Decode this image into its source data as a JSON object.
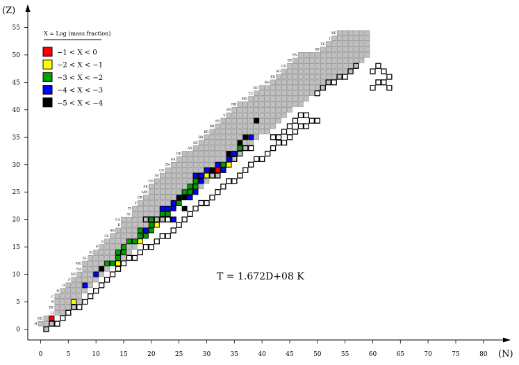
{
  "chart_data": {
    "type": "heatmap",
    "title": "",
    "xlabel": "(N)",
    "ylabel": "(Z)",
    "xlim": [
      0,
      80
    ],
    "ylim": [
      0,
      55
    ],
    "xticks": [
      0,
      5,
      10,
      15,
      20,
      25,
      30,
      35,
      40,
      45,
      50,
      55,
      60,
      65,
      70,
      75,
      80
    ],
    "yticks": [
      0,
      5,
      10,
      15,
      20,
      25,
      30,
      35,
      40,
      45,
      50,
      55
    ],
    "annotation": "T = 1.672D+08 K",
    "legend": {
      "title": "X = Log (mass fraction)",
      "placement": "top-left",
      "entries": [
        {
          "label": "−1 < X < 0",
          "color": "#ff0000"
        },
        {
          "label": "−2 < X < −1",
          "color": "#ffff00"
        },
        {
          "label": "−3 < X < −2",
          "color": "#00a000"
        },
        {
          "label": "−4 < X < −3",
          "color": "#0000ff"
        },
        {
          "label": "−5 < X < −4",
          "color": "#000000"
        }
      ]
    },
    "colors": {
      "network": "#c0c0c0",
      "m1": "#ff0000",
      "m2": "#ffff00",
      "m3": "#00a000",
      "m4": "#0000ff",
      "m5": "#000000"
    },
    "element_labels": [
      {
        "z": 1,
        "symbol": "H"
      },
      {
        "z": 2,
        "symbol": "HE"
      },
      {
        "z": 3,
        "symbol": "LI"
      },
      {
        "z": 4,
        "symbol": "BE"
      },
      {
        "z": 5,
        "symbol": "B"
      },
      {
        "z": 6,
        "symbol": "C"
      },
      {
        "z": 7,
        "symbol": "N"
      },
      {
        "z": 8,
        "symbol": "O"
      },
      {
        "z": 9,
        "symbol": "F"
      },
      {
        "z": 10,
        "symbol": "NE"
      },
      {
        "z": 11,
        "symbol": "NA"
      },
      {
        "z": 12,
        "symbol": "MG"
      },
      {
        "z": 13,
        "symbol": "AL"
      },
      {
        "z": 14,
        "symbol": "SI"
      },
      {
        "z": 15,
        "symbol": "P"
      },
      {
        "z": 16,
        "symbol": "S"
      },
      {
        "z": 17,
        "symbol": "CL"
      },
      {
        "z": 18,
        "symbol": "AR"
      },
      {
        "z": 19,
        "symbol": "K"
      },
      {
        "z": 20,
        "symbol": "CA"
      },
      {
        "z": 21,
        "symbol": "SC"
      },
      {
        "z": 22,
        "symbol": "TI"
      },
      {
        "z": 23,
        "symbol": "V"
      },
      {
        "z": 24,
        "symbol": "CR"
      },
      {
        "z": 25,
        "symbol": "MN"
      },
      {
        "z": 26,
        "symbol": "FE"
      },
      {
        "z": 27,
        "symbol": "CO"
      },
      {
        "z": 28,
        "symbol": "NI"
      },
      {
        "z": 29,
        "symbol": "CU"
      },
      {
        "z": 30,
        "symbol": "ZN"
      },
      {
        "z": 31,
        "symbol": "GA"
      },
      {
        "z": 32,
        "symbol": "GE"
      },
      {
        "z": 33,
        "symbol": "AS"
      },
      {
        "z": 34,
        "symbol": "SE"
      },
      {
        "z": 35,
        "symbol": "BR"
      },
      {
        "z": 36,
        "symbol": "KR"
      },
      {
        "z": 37,
        "symbol": "RB"
      },
      {
        "z": 38,
        "symbol": "SR"
      },
      {
        "z": 39,
        "symbol": "Y"
      },
      {
        "z": 40,
        "symbol": "ZR"
      },
      {
        "z": 41,
        "symbol": "NB"
      },
      {
        "z": 42,
        "symbol": "MO"
      },
      {
        "z": 43,
        "symbol": "TC"
      },
      {
        "z": 44,
        "symbol": "RU"
      },
      {
        "z": 45,
        "symbol": "RH"
      },
      {
        "z": 46,
        "symbol": "PD"
      },
      {
        "z": 47,
        "symbol": "AG"
      },
      {
        "z": 48,
        "symbol": "CD"
      },
      {
        "z": 49,
        "symbol": "IN"
      },
      {
        "z": 50,
        "symbol": "SN"
      },
      {
        "z": 51,
        "symbol": "SB"
      },
      {
        "z": 52,
        "symbol": "TE"
      },
      {
        "z": 53,
        "symbol": "I"
      },
      {
        "z": 54,
        "symbol": "XE"
      }
    ],
    "network_rows": [
      {
        "z": 0,
        "n": [
          1,
          1
        ]
      },
      {
        "z": 1,
        "n": [
          0,
          2
        ]
      },
      {
        "z": 2,
        "n": [
          1,
          2
        ]
      },
      {
        "z": 3,
        "n": [
          3,
          4
        ]
      },
      {
        "z": 4,
        "n": [
          3,
          6
        ]
      },
      {
        "z": 5,
        "n": [
          3,
          7
        ]
      },
      {
        "z": 6,
        "n": [
          3,
          7
        ]
      },
      {
        "z": 7,
        "n": [
          4,
          8
        ]
      },
      {
        "z": 8,
        "n": [
          5,
          9
        ]
      },
      {
        "z": 9,
        "n": [
          6,
          10
        ]
      },
      {
        "z": 10,
        "n": [
          7,
          11
        ]
      },
      {
        "z": 11,
        "n": [
          8,
          12
        ]
      },
      {
        "z": 12,
        "n": [
          8,
          14
        ]
      },
      {
        "z": 13,
        "n": [
          9,
          15
        ]
      },
      {
        "z": 14,
        "n": [
          10,
          16
        ]
      },
      {
        "z": 15,
        "n": [
          11,
          17
        ]
      },
      {
        "z": 16,
        "n": [
          12,
          18
        ]
      },
      {
        "z": 17,
        "n": [
          13,
          19
        ]
      },
      {
        "z": 18,
        "n": [
          14,
          20
        ]
      },
      {
        "z": 19,
        "n": [
          15,
          21
        ]
      },
      {
        "z": 20,
        "n": [
          15,
          22
        ]
      },
      {
        "z": 21,
        "n": [
          17,
          23
        ]
      },
      {
        "z": 22,
        "n": [
          17,
          24
        ]
      },
      {
        "z": 23,
        "n": [
          18,
          25
        ]
      },
      {
        "z": 24,
        "n": [
          19,
          27
        ]
      },
      {
        "z": 25,
        "n": [
          20,
          28
        ]
      },
      {
        "z": 26,
        "n": [
          20,
          29
        ]
      },
      {
        "z": 27,
        "n": [
          21,
          30
        ]
      },
      {
        "z": 28,
        "n": [
          22,
          32
        ]
      },
      {
        "z": 29,
        "n": [
          23,
          33
        ]
      },
      {
        "z": 30,
        "n": [
          24,
          34
        ]
      },
      {
        "z": 31,
        "n": [
          25,
          35
        ]
      },
      {
        "z": 32,
        "n": [
          26,
          36
        ]
      },
      {
        "z": 33,
        "n": [
          28,
          37
        ]
      },
      {
        "z": 34,
        "n": [
          29,
          38
        ]
      },
      {
        "z": 35,
        "n": [
          30,
          39
        ]
      },
      {
        "z": 36,
        "n": [
          31,
          41
        ]
      },
      {
        "z": 37,
        "n": [
          32,
          42
        ]
      },
      {
        "z": 38,
        "n": [
          33,
          43
        ]
      },
      {
        "z": 39,
        "n": [
          34,
          44
        ]
      },
      {
        "z": 40,
        "n": [
          35,
          45
        ]
      },
      {
        "z": 41,
        "n": [
          36,
          47
        ]
      },
      {
        "z": 42,
        "n": [
          38,
          48
        ]
      },
      {
        "z": 43,
        "n": [
          39,
          49
        ]
      },
      {
        "z": 44,
        "n": [
          40,
          51
        ]
      },
      {
        "z": 45,
        "n": [
          42,
          52
        ]
      },
      {
        "z": 46,
        "n": [
          43,
          54
        ]
      },
      {
        "z": 47,
        "n": [
          44,
          56
        ]
      },
      {
        "z": 48,
        "n": [
          45,
          57
        ]
      },
      {
        "z": 49,
        "n": [
          46,
          58
        ]
      },
      {
        "z": 50,
        "n": [
          47,
          59
        ]
      },
      {
        "z": 51,
        "n": [
          51,
          59
        ]
      },
      {
        "z": 52,
        "n": [
          52,
          59
        ]
      },
      {
        "z": 53,
        "n": [
          53,
          59
        ]
      },
      {
        "z": 54,
        "n": [
          54,
          59
        ]
      }
    ],
    "outlined_cells": [
      [
        1,
        0
      ],
      [
        2,
        1
      ],
      [
        3,
        1
      ],
      [
        4,
        2
      ],
      [
        5,
        3
      ],
      [
        6,
        4
      ],
      [
        7,
        4
      ],
      [
        8,
        5
      ],
      [
        9,
        6
      ],
      [
        10,
        7
      ],
      [
        11,
        8
      ],
      [
        12,
        9
      ],
      [
        13,
        10
      ],
      [
        14,
        11
      ],
      [
        15,
        12
      ],
      [
        16,
        13
      ],
      [
        17,
        13
      ],
      [
        18,
        14
      ],
      [
        19,
        15
      ],
      [
        20,
        15
      ],
      [
        21,
        16
      ],
      [
        22,
        17
      ],
      [
        23,
        17
      ],
      [
        24,
        18
      ],
      [
        25,
        19
      ],
      [
        26,
        20
      ],
      [
        27,
        21
      ],
      [
        28,
        22
      ],
      [
        29,
        23
      ],
      [
        30,
        23
      ],
      [
        31,
        24
      ],
      [
        32,
        25
      ],
      [
        33,
        26
      ],
      [
        34,
        27
      ],
      [
        35,
        27
      ],
      [
        36,
        28
      ],
      [
        37,
        29
      ],
      [
        38,
        30
      ],
      [
        39,
        31
      ],
      [
        40,
        31
      ],
      [
        41,
        32
      ],
      [
        42,
        33
      ],
      [
        43,
        34
      ],
      [
        44,
        34
      ],
      [
        45,
        35
      ],
      [
        46,
        36
      ],
      [
        47,
        37
      ],
      [
        48,
        37
      ],
      [
        49,
        38
      ],
      [
        50,
        38
      ],
      [
        19,
        20
      ],
      [
        20,
        20
      ],
      [
        21,
        20
      ],
      [
        22,
        20
      ],
      [
        23,
        20
      ],
      [
        24,
        20
      ],
      [
        31,
        28
      ],
      [
        32,
        28
      ],
      [
        33,
        29
      ],
      [
        34,
        30
      ],
      [
        35,
        31
      ],
      [
        36,
        32
      ],
      [
        37,
        33
      ],
      [
        38,
        33
      ],
      [
        42,
        35
      ],
      [
        43,
        35
      ],
      [
        44,
        36
      ],
      [
        45,
        37
      ],
      [
        46,
        38
      ],
      [
        47,
        39
      ],
      [
        48,
        39
      ],
      [
        50,
        43
      ],
      [
        51,
        44
      ],
      [
        52,
        45
      ],
      [
        53,
        45
      ],
      [
        54,
        46
      ],
      [
        55,
        46
      ],
      [
        56,
        47
      ],
      [
        57,
        48
      ],
      [
        60,
        47
      ],
      [
        61,
        48
      ],
      [
        62,
        47
      ],
      [
        63,
        46
      ],
      [
        60,
        44
      ],
      [
        61,
        45
      ],
      [
        62,
        45
      ],
      [
        63,
        44
      ]
    ],
    "colored_cells": [
      {
        "n": 2,
        "z": 2,
        "cls": "m1"
      },
      {
        "n": 6,
        "z": 5,
        "cls": "m2"
      },
      {
        "n": 8,
        "z": 8,
        "cls": "m4"
      },
      {
        "n": 10,
        "z": 10,
        "cls": "m4"
      },
      {
        "n": 11,
        "z": 11,
        "cls": "m5"
      },
      {
        "n": 12,
        "z": 12,
        "cls": "m3"
      },
      {
        "n": 13,
        "z": 12,
        "cls": "m3"
      },
      {
        "n": 14,
        "z": 12,
        "cls": "m2"
      },
      {
        "n": 14,
        "z": 13,
        "cls": "m3"
      },
      {
        "n": 14,
        "z": 14,
        "cls": "m3"
      },
      {
        "n": 15,
        "z": 14,
        "cls": "m3"
      },
      {
        "n": 15,
        "z": 15,
        "cls": "m3"
      },
      {
        "n": 16,
        "z": 16,
        "cls": "m3"
      },
      {
        "n": 17,
        "z": 16,
        "cls": "m3"
      },
      {
        "n": 18,
        "z": 16,
        "cls": "m2"
      },
      {
        "n": 18,
        "z": 17,
        "cls": "m3"
      },
      {
        "n": 18,
        "z": 18,
        "cls": "m3"
      },
      {
        "n": 19,
        "z": 18,
        "cls": "m4"
      },
      {
        "n": 19,
        "z": 17,
        "cls": "m3"
      },
      {
        "n": 20,
        "z": 18,
        "cls": "m3"
      },
      {
        "n": 20,
        "z": 19,
        "cls": "m3"
      },
      {
        "n": 20,
        "z": 20,
        "cls": "m3"
      },
      {
        "n": 21,
        "z": 19,
        "cls": "m2"
      },
      {
        "n": 22,
        "z": 21,
        "cls": "m3"
      },
      {
        "n": 22,
        "z": 22,
        "cls": "m4"
      },
      {
        "n": 23,
        "z": 21,
        "cls": "m3"
      },
      {
        "n": 23,
        "z": 22,
        "cls": "m4"
      },
      {
        "n": 24,
        "z": 20,
        "cls": "m4"
      },
      {
        "n": 24,
        "z": 22,
        "cls": "m4"
      },
      {
        "n": 24,
        "z": 23,
        "cls": "m4"
      },
      {
        "n": 25,
        "z": 23,
        "cls": "m3"
      },
      {
        "n": 25,
        "z": 24,
        "cls": "m5"
      },
      {
        "n": 26,
        "z": 22,
        "cls": "m5"
      },
      {
        "n": 26,
        "z": 24,
        "cls": "m5"
      },
      {
        "n": 26,
        "z": 25,
        "cls": "m3"
      },
      {
        "n": 27,
        "z": 24,
        "cls": "m4"
      },
      {
        "n": 27,
        "z": 25,
        "cls": "m3"
      },
      {
        "n": 27,
        "z": 26,
        "cls": "m3"
      },
      {
        "n": 28,
        "z": 25,
        "cls": "m4"
      },
      {
        "n": 28,
        "z": 26,
        "cls": "m3"
      },
      {
        "n": 28,
        "z": 27,
        "cls": "m3"
      },
      {
        "n": 28,
        "z": 28,
        "cls": "m4"
      },
      {
        "n": 29,
        "z": 27,
        "cls": "m4"
      },
      {
        "n": 29,
        "z": 28,
        "cls": "m4"
      },
      {
        "n": 30,
        "z": 28,
        "cls": "m2"
      },
      {
        "n": 30,
        "z": 29,
        "cls": "m4"
      },
      {
        "n": 31,
        "z": 29,
        "cls": "m5"
      },
      {
        "n": 32,
        "z": 29,
        "cls": "m1"
      },
      {
        "n": 32,
        "z": 30,
        "cls": "m4"
      },
      {
        "n": 33,
        "z": 29,
        "cls": "m4"
      },
      {
        "n": 33,
        "z": 30,
        "cls": "m3"
      },
      {
        "n": 34,
        "z": 30,
        "cls": "m2"
      },
      {
        "n": 34,
        "z": 31,
        "cls": "m4"
      },
      {
        "n": 34,
        "z": 32,
        "cls": "m5"
      },
      {
        "n": 35,
        "z": 32,
        "cls": "m4"
      },
      {
        "n": 36,
        "z": 33,
        "cls": "m3"
      },
      {
        "n": 36,
        "z": 34,
        "cls": "m5"
      },
      {
        "n": 37,
        "z": 35,
        "cls": "m5"
      },
      {
        "n": 38,
        "z": 35,
        "cls": "m4"
      },
      {
        "n": 39,
        "z": 38,
        "cls": "m5"
      }
    ]
  }
}
